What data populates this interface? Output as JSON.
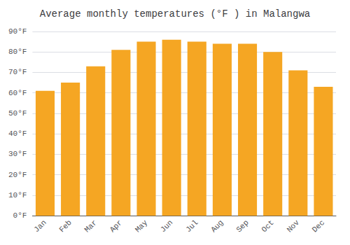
{
  "chart_data": {
    "type": "bar",
    "title": "Average monthly temperatures (°F ) in Malangwa",
    "categories": [
      "Jan",
      "Feb",
      "Mar",
      "Apr",
      "May",
      "Jun",
      "Jul",
      "Aug",
      "Sep",
      "Oct",
      "Nov",
      "Dec"
    ],
    "values": [
      61,
      65,
      73,
      81,
      85,
      86,
      85,
      84,
      84,
      80,
      71,
      63
    ],
    "color": "#F5A623",
    "ylim": [
      0,
      90
    ],
    "yticks": [
      {
        "value": 0,
        "label": "0°F"
      },
      {
        "value": 10,
        "label": "10°F"
      },
      {
        "value": 20,
        "label": "20°F"
      },
      {
        "value": 30,
        "label": "30°F"
      },
      {
        "value": 40,
        "label": "40°F"
      },
      {
        "value": 50,
        "label": "50°F"
      },
      {
        "value": 60,
        "label": "60°F"
      },
      {
        "value": 70,
        "label": "70°F"
      },
      {
        "value": 80,
        "label": "80°F"
      },
      {
        "value": 90,
        "label": "90°F"
      }
    ],
    "grid": true
  }
}
